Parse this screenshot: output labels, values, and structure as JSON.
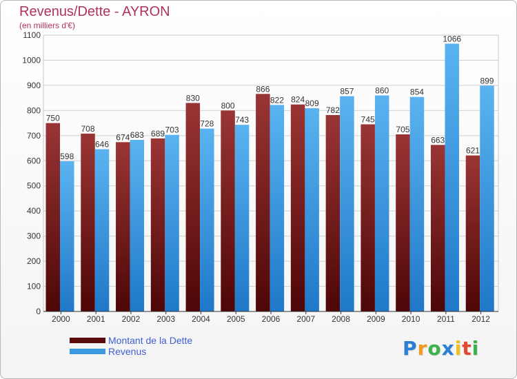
{
  "title": "Revenus/Dette - AYRON",
  "subtitle": "(en milliers d'€)",
  "chart_data": {
    "type": "bar",
    "categories": [
      "2000",
      "2001",
      "2002",
      "2003",
      "2004",
      "2005",
      "2006",
      "2007",
      "2008",
      "2009",
      "2010",
      "2011",
      "2012"
    ],
    "series": [
      {
        "name": "Montant de la Dette",
        "values": [
          750,
          708,
          674,
          689,
          830,
          800,
          866,
          824,
          782,
          745,
          705,
          663,
          621
        ],
        "color": "#7d1f1f"
      },
      {
        "name": "Revenus",
        "values": [
          598,
          646,
          683,
          703,
          728,
          743,
          822,
          809,
          857,
          860,
          854,
          1066,
          899
        ],
        "color": "#3a9ae0"
      }
    ],
    "ylim": [
      0,
      1100
    ],
    "yticks": [
      0,
      100,
      200,
      300,
      400,
      500,
      600,
      700,
      800,
      900,
      1000,
      1100
    ],
    "grid": true,
    "legend_position": "bottom-left",
    "data_labels": true
  },
  "legend": {
    "items": [
      {
        "label": "Montant de la Dette",
        "color": "#5a0a0a"
      },
      {
        "label": "Revenus",
        "color": "#3a9ae0"
      }
    ]
  },
  "logo": {
    "letters": [
      "P",
      "r",
      "o",
      "x",
      "i",
      "t",
      "i"
    ],
    "colors": [
      "#2a7fd4",
      "#f29a1d",
      "#3cb34a",
      "#2a7fd4",
      "#f2c01d",
      "#e5482d",
      "#3cb34a"
    ]
  }
}
